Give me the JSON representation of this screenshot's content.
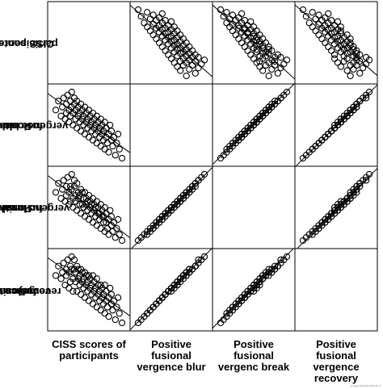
{
  "chart_data": {
    "type": "scatter",
    "variables": [
      "CISS scores of participants",
      "Positive fusional vergence blur",
      "Positive fusional vergenc break",
      "Positive fusional vergence recovery"
    ],
    "row_label_lines": [
      [
        "CISS scores of",
        "participants"
      ],
      [
        "Positive",
        "fusional",
        "vergence blur"
      ],
      [
        "Positive",
        "fusional",
        "vergenc break"
      ],
      [
        "Positive",
        "fusional",
        "vergence",
        "recovery"
      ]
    ],
    "col_label_lines": [
      [
        "CISS scores of",
        "participants"
      ],
      [
        "Positive",
        "fusional",
        "vergence blur"
      ],
      [
        "Positive",
        "fusional",
        "vergenc break"
      ],
      [
        "Positive",
        "fusional",
        "vergence",
        "recovery"
      ]
    ],
    "diagonal": "empty",
    "fit_lines": true,
    "axes_ticks": false,
    "grid": false,
    "marker": "open-circle",
    "points": [
      [
        10,
        27,
        29,
        25
      ],
      [
        12,
        30,
        32,
        28
      ],
      [
        14,
        25,
        27,
        24
      ],
      [
        15,
        28,
        30,
        26
      ],
      [
        16,
        31,
        33,
        29
      ],
      [
        17,
        24,
        26,
        22
      ],
      [
        18,
        29,
        31,
        27
      ],
      [
        18,
        26,
        28,
        25
      ],
      [
        19,
        32,
        34,
        30
      ],
      [
        20,
        27,
        29,
        26
      ],
      [
        20,
        23,
        25,
        21
      ],
      [
        21,
        30,
        31,
        28
      ],
      [
        21,
        25,
        26,
        23
      ],
      [
        22,
        28,
        30,
        27
      ],
      [
        22,
        33,
        35,
        31
      ],
      [
        23,
        26,
        27,
        24
      ],
      [
        23,
        22,
        24,
        20
      ],
      [
        24,
        29,
        31,
        27
      ],
      [
        24,
        31,
        33,
        30
      ],
      [
        25,
        24,
        26,
        23
      ],
      [
        25,
        27,
        28,
        26
      ],
      [
        26,
        21,
        23,
        20
      ],
      [
        26,
        30,
        32,
        28
      ],
      [
        27,
        25,
        27,
        24
      ],
      [
        27,
        28,
        29,
        27
      ],
      [
        28,
        23,
        25,
        22
      ],
      [
        28,
        26,
        28,
        25
      ],
      [
        29,
        20,
        22,
        19
      ],
      [
        29,
        29,
        30,
        27
      ],
      [
        30,
        24,
        25,
        23
      ],
      [
        30,
        27,
        29,
        26
      ],
      [
        31,
        22,
        24,
        21
      ],
      [
        31,
        25,
        27,
        24
      ],
      [
        32,
        19,
        21,
        18
      ],
      [
        32,
        28,
        29,
        26
      ],
      [
        33,
        23,
        25,
        22
      ],
      [
        33,
        26,
        27,
        25
      ],
      [
        34,
        21,
        23,
        20
      ],
      [
        34,
        24,
        26,
        23
      ],
      [
        35,
        18,
        20,
        17
      ],
      [
        35,
        27,
        28,
        25
      ],
      [
        36,
        22,
        24,
        21
      ],
      [
        36,
        25,
        26,
        24
      ],
      [
        37,
        20,
        22,
        19
      ],
      [
        37,
        23,
        25,
        22
      ],
      [
        38,
        17,
        19,
        16
      ],
      [
        38,
        26,
        27,
        25
      ],
      [
        39,
        21,
        23,
        20
      ],
      [
        39,
        24,
        25,
        23
      ],
      [
        40,
        19,
        21,
        18
      ],
      [
        40,
        22,
        24,
        21
      ],
      [
        41,
        16,
        18,
        15
      ],
      [
        41,
        25,
        26,
        24
      ],
      [
        42,
        20,
        22,
        19
      ],
      [
        42,
        23,
        24,
        22
      ],
      [
        43,
        18,
        20,
        17
      ],
      [
        43,
        21,
        22,
        20
      ],
      [
        44,
        15,
        17,
        14
      ],
      [
        44,
        24,
        25,
        22
      ],
      [
        45,
        19,
        21,
        18
      ],
      [
        45,
        22,
        23,
        21
      ],
      [
        46,
        17,
        19,
        16
      ],
      [
        46,
        20,
        21,
        19
      ],
      [
        47,
        14,
        16,
        13
      ],
      [
        47,
        23,
        24,
        22
      ],
      [
        48,
        18,
        19,
        17
      ],
      [
        48,
        21,
        22,
        20
      ],
      [
        49,
        16,
        17,
        15
      ],
      [
        50,
        19,
        20,
        18
      ],
      [
        50,
        13,
        15,
        12
      ],
      [
        51,
        22,
        23,
        21
      ],
      [
        52,
        17,
        18,
        16
      ],
      [
        52,
        20,
        21,
        19
      ],
      [
        53,
        15,
        16,
        14
      ],
      [
        54,
        18,
        19,
        17
      ],
      [
        55,
        12,
        14,
        11
      ],
      [
        56,
        16,
        17,
        15
      ],
      [
        57,
        19,
        20,
        18
      ],
      [
        58,
        14,
        15,
        13
      ],
      [
        60,
        11,
        13,
        10
      ]
    ]
  },
  "credit": "cl-1ggh 2023-03-10/11 26 17"
}
